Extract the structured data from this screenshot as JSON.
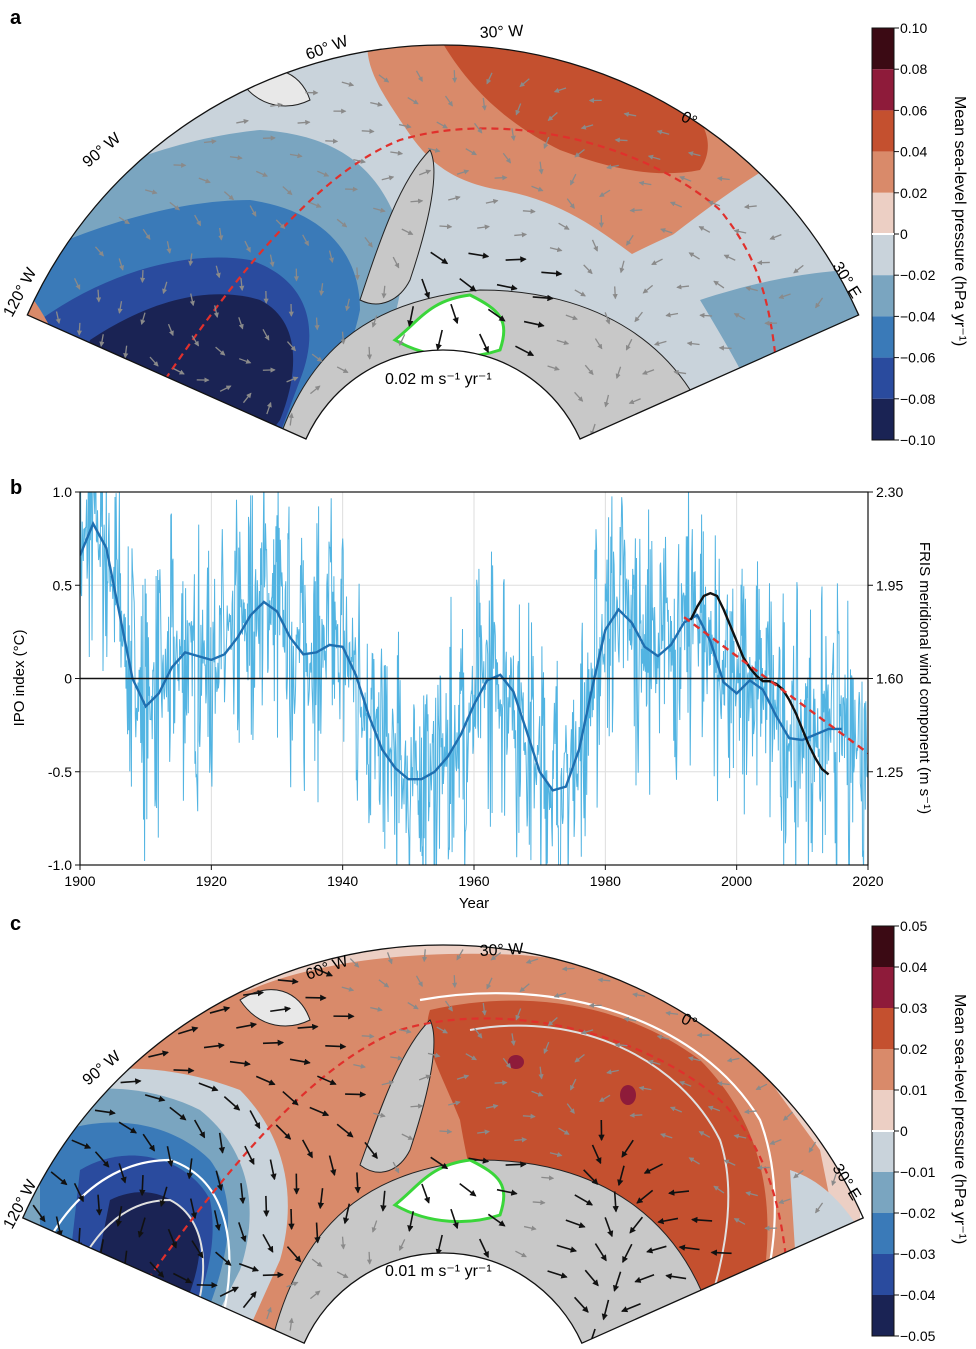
{
  "panel_a": {
    "label": "a",
    "longitudes": [
      "60° W",
      "30° W",
      "90° W",
      "0°",
      "30° E",
      "120° W"
    ],
    "vector_scale": "0.02 m s⁻¹ yr⁻¹",
    "colorbar": {
      "title": "Mean sea-level pressure (hPa yr⁻¹)",
      "ticks": [
        "0.10",
        "0.08",
        "0.06",
        "0.04",
        "0.02",
        "0",
        "−0.02",
        "−0.04",
        "−0.06",
        "−0.08",
        "−0.10"
      ],
      "colors": [
        "#3b0a14",
        "#8e1b3a",
        "#c4502f",
        "#d98a6a",
        "#eccfc4",
        "#c9d3db",
        "#7aa5c0",
        "#3a7ab8",
        "#2a4b9e",
        "#1a2354"
      ]
    }
  },
  "panel_c": {
    "label": "c",
    "longitudes": [
      "60° W",
      "30° W",
      "90° W",
      "0°",
      "30° E",
      "120° W"
    ],
    "vector_scale": "0.01 m s⁻¹ yr⁻¹",
    "colorbar": {
      "title": "Mean sea-level pressure (hPa yr⁻¹)",
      "ticks": [
        "0.05",
        "0.04",
        "0.03",
        "0.02",
        "0.01",
        "0",
        "−0.01",
        "−0.02",
        "−0.03",
        "−0.04",
        "−0.05"
      ],
      "colors": [
        "#3b0a14",
        "#8e1b3a",
        "#c4502f",
        "#d98a6a",
        "#eccfc4",
        "#c9d3db",
        "#7aa5c0",
        "#3a7ab8",
        "#2a4b9e",
        "#1a2354"
      ]
    }
  },
  "chart_data": {
    "label": "b",
    "type": "line",
    "xlabel": "Year",
    "ylabel": "IPO index (°C)",
    "ylabel_right": "FRIS meridional wind component (m s⁻¹)",
    "xlim": [
      1900,
      2020
    ],
    "ylim": [
      -1.0,
      1.0
    ],
    "ylim_right": [
      0.9,
      2.3
    ],
    "x_ticks": [
      "1900",
      "1920",
      "1940",
      "1960",
      "1980",
      "2000",
      "2020"
    ],
    "y_ticks": [
      "1.0",
      "0.5",
      "0",
      "-0.5",
      "-1.0"
    ],
    "y_ticks_right": [
      "2.30",
      "1.95",
      "1.60",
      "1.25"
    ],
    "grid": true,
    "series": [
      {
        "key": "ipo_smooth",
        "color": "#1f6fb0",
        "x": [
          1900,
          1902,
          1904,
          1906,
          1908,
          1910,
          1912,
          1914,
          1916,
          1918,
          1920,
          1922,
          1924,
          1926,
          1928,
          1930,
          1932,
          1934,
          1936,
          1938,
          1940,
          1942,
          1944,
          1946,
          1948,
          1950,
          1952,
          1954,
          1956,
          1958,
          1960,
          1962,
          1964,
          1966,
          1968,
          1970,
          1972,
          1974,
          1976,
          1978,
          1980,
          1982,
          1984,
          1986,
          1988,
          1990,
          1992,
          1994,
          1996,
          1998,
          2000,
          2002,
          2004,
          2006,
          2008,
          2010,
          2012,
          2014,
          2016
        ],
        "y": [
          0.66,
          0.83,
          0.7,
          0.35,
          0.0,
          -0.15,
          -0.08,
          0.06,
          0.14,
          0.12,
          0.1,
          0.13,
          0.22,
          0.34,
          0.41,
          0.36,
          0.22,
          0.13,
          0.14,
          0.18,
          0.17,
          0.02,
          -0.2,
          -0.38,
          -0.48,
          -0.54,
          -0.54,
          -0.5,
          -0.42,
          -0.3,
          -0.14,
          -0.01,
          0.02,
          -0.07,
          -0.28,
          -0.5,
          -0.6,
          -0.58,
          -0.38,
          -0.05,
          0.26,
          0.37,
          0.3,
          0.17,
          0.12,
          0.18,
          0.3,
          0.34,
          0.2,
          -0.02,
          -0.08,
          -0.01,
          -0.06,
          -0.2,
          -0.32,
          -0.33,
          -0.3,
          -0.27,
          -0.27
        ]
      },
      {
        "key": "fris_black",
        "color": "#111111",
        "axis": "right",
        "x": [
          1993,
          1994,
          1995,
          1996,
          1997,
          1998,
          1999,
          2000,
          2001,
          2002,
          2003,
          2004,
          2005,
          2006,
          2007,
          2008,
          2009,
          2010,
          2011,
          2012,
          2013,
          2014
        ],
        "y": [
          1.82,
          1.87,
          1.91,
          1.92,
          1.91,
          1.86,
          1.8,
          1.74,
          1.68,
          1.64,
          1.61,
          1.59,
          1.59,
          1.58,
          1.56,
          1.52,
          1.47,
          1.41,
          1.35,
          1.3,
          1.26,
          1.24
        ]
      },
      {
        "key": "fris_trend",
        "color": "#e0302c",
        "axis": "right",
        "x": [
          1992,
          2020
        ],
        "y": [
          1.83,
          1.32
        ]
      }
    ]
  }
}
